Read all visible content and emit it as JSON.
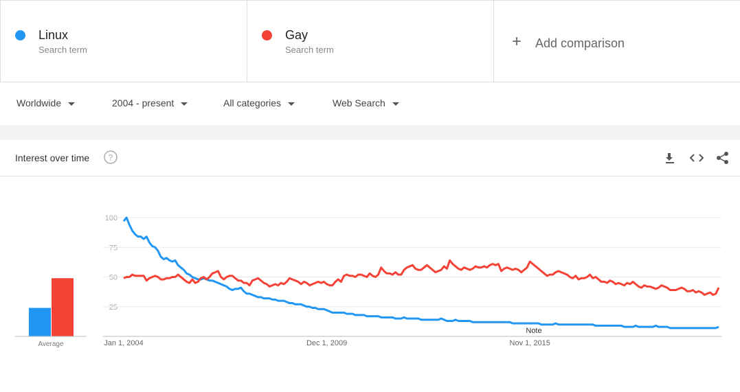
{
  "header": {
    "add_comparison": "Add comparison",
    "filters": [
      "Worldwide",
      "2004 - present",
      "All categories",
      "Web Search"
    ],
    "section_title": "Interest over time"
  },
  "chart_data": {
    "type": "line",
    "categories": [
      "Jan 1, 2004",
      null,
      null,
      null,
      null,
      null,
      null,
      null,
      null,
      null,
      null,
      null,
      null,
      null,
      null,
      null,
      null,
      null,
      null,
      null,
      null,
      null,
      null,
      null,
      null,
      null,
      null,
      null,
      null,
      null,
      null,
      null,
      null,
      null,
      null,
      null,
      null,
      null,
      null,
      null,
      null,
      null,
      null,
      null,
      null,
      null,
      null,
      null,
      null,
      null,
      null,
      null,
      null,
      null,
      null,
      null,
      null,
      null,
      null,
      null,
      null,
      null,
      null,
      null,
      null,
      null,
      null,
      null,
      null,
      null,
      null,
      "Dec 1, 2009",
      null,
      null,
      null,
      null,
      null,
      null,
      null,
      null,
      null,
      null,
      null,
      null,
      null,
      null,
      null,
      null,
      null,
      null,
      null,
      null,
      null,
      null,
      null,
      null,
      null,
      null,
      null,
      null,
      null,
      null,
      null,
      null,
      null,
      null,
      null,
      null,
      null,
      null,
      null,
      null,
      null,
      null,
      null,
      null,
      null,
      null,
      null,
      null,
      null,
      null,
      null,
      null,
      null,
      null,
      null,
      null,
      null,
      null,
      null,
      null,
      null,
      null,
      null,
      null,
      null,
      null,
      null,
      null,
      null,
      null,
      "Nov 1, 2015",
      null,
      null,
      null,
      null,
      null,
      null,
      null,
      null,
      null,
      null,
      null,
      null,
      null,
      null,
      null,
      null,
      null,
      null,
      null,
      null,
      null,
      null,
      null,
      null,
      null,
      null,
      null,
      null,
      null,
      null,
      null,
      null,
      null,
      null,
      null,
      null,
      null,
      null,
      null,
      null,
      null,
      null,
      null,
      null,
      null,
      null,
      null,
      null,
      null,
      null,
      null,
      null,
      null,
      null,
      null,
      null,
      null,
      null,
      null,
      null,
      null,
      null,
      null,
      null,
      null,
      null
    ],
    "series": [
      {
        "name": "Linux",
        "kind": "Search term",
        "color": "#2196f3",
        "average": 24,
        "values": [
          97,
          100,
          94,
          89,
          86,
          84,
          84,
          82,
          84,
          79,
          76,
          75,
          72,
          67,
          65,
          66,
          64,
          63,
          64,
          60,
          58,
          56,
          53,
          52,
          50,
          49,
          48,
          48,
          49,
          48,
          47,
          47,
          46,
          45,
          44,
          43,
          42,
          40,
          39,
          40,
          40,
          41,
          38,
          36,
          36,
          35,
          34,
          33,
          33,
          32,
          32,
          32,
          31,
          31,
          30,
          30,
          30,
          29,
          28,
          28,
          27,
          27,
          27,
          26,
          25,
          25,
          24,
          24,
          23,
          23,
          23,
          22,
          21,
          20,
          20,
          20,
          20,
          20,
          19,
          19,
          19,
          18,
          18,
          18,
          18,
          17,
          17,
          17,
          17,
          17,
          16,
          16,
          16,
          16,
          16,
          15,
          15,
          15,
          16,
          15,
          15,
          15,
          15,
          15,
          14,
          14,
          14,
          14,
          14,
          14,
          14,
          15,
          14,
          13,
          13,
          13,
          14,
          13,
          13,
          13,
          13,
          13,
          12,
          12,
          12,
          12,
          12,
          12,
          12,
          12,
          12,
          12,
          12,
          12,
          12,
          12,
          11,
          11,
          11,
          11,
          11,
          11,
          11,
          11,
          11,
          11,
          10,
          10,
          10,
          10,
          10,
          11,
          10,
          10,
          10,
          10,
          10,
          10,
          10,
          10,
          10,
          10,
          10,
          10,
          10,
          9,
          9,
          9,
          9,
          9,
          9,
          9,
          9,
          9,
          9,
          8,
          8,
          8,
          8,
          9,
          8,
          8,
          8,
          8,
          8,
          8,
          9,
          8,
          8,
          8,
          8,
          7,
          7,
          7,
          7,
          7,
          7,
          7,
          7,
          7,
          7,
          7,
          7,
          7,
          7,
          7,
          7,
          7,
          8
        ]
      },
      {
        "name": "Gay",
        "kind": "Search term",
        "color": "#f44336",
        "average": 49,
        "values": [
          49,
          50,
          50,
          52,
          51,
          51,
          51,
          51,
          47,
          49,
          50,
          51,
          50,
          48,
          48,
          49,
          49,
          50,
          50,
          52,
          50,
          48,
          46,
          45,
          48,
          45,
          46,
          49,
          50,
          48,
          50,
          53,
          54,
          55,
          50,
          48,
          50,
          51,
          51,
          49,
          47,
          47,
          45,
          45,
          43,
          47,
          48,
          49,
          47,
          45,
          44,
          42,
          43,
          44,
          43,
          45,
          44,
          46,
          49,
          48,
          47,
          46,
          44,
          46,
          45,
          43,
          44,
          45,
          46,
          45,
          46,
          44,
          43,
          43,
          46,
          48,
          46,
          51,
          52,
          51,
          51,
          50,
          52,
          52,
          51,
          50,
          53,
          51,
          50,
          52,
          58,
          55,
          53,
          53,
          52,
          54,
          52,
          52,
          56,
          58,
          59,
          60,
          57,
          56,
          56,
          58,
          60,
          58,
          56,
          54,
          55,
          56,
          59,
          57,
          64,
          61,
          59,
          57,
          56,
          58,
          57,
          56,
          57,
          59,
          58,
          58,
          59,
          58,
          60,
          61,
          60,
          61,
          55,
          57,
          58,
          57,
          56,
          57,
          56,
          54,
          56,
          58,
          63,
          61,
          59,
          57,
          55,
          53,
          51,
          52,
          52,
          54,
          55,
          54,
          53,
          52,
          50,
          49,
          51,
          48,
          49,
          49,
          50,
          52,
          49,
          50,
          48,
          46,
          46,
          45,
          47,
          46,
          44,
          45,
          44,
          43,
          45,
          44,
          46,
          44,
          42,
          41,
          43,
          42,
          42,
          41,
          40,
          41,
          43,
          42,
          41,
          39,
          39,
          39,
          40,
          41,
          40,
          38,
          38,
          39,
          37,
          38,
          37,
          35,
          36,
          37,
          35,
          36,
          41
        ]
      }
    ],
    "average_label": "Average",
    "annotation": "Note",
    "ylim": [
      0,
      100
    ],
    "yticks": [
      25,
      50,
      75,
      100
    ],
    "grid": true
  }
}
